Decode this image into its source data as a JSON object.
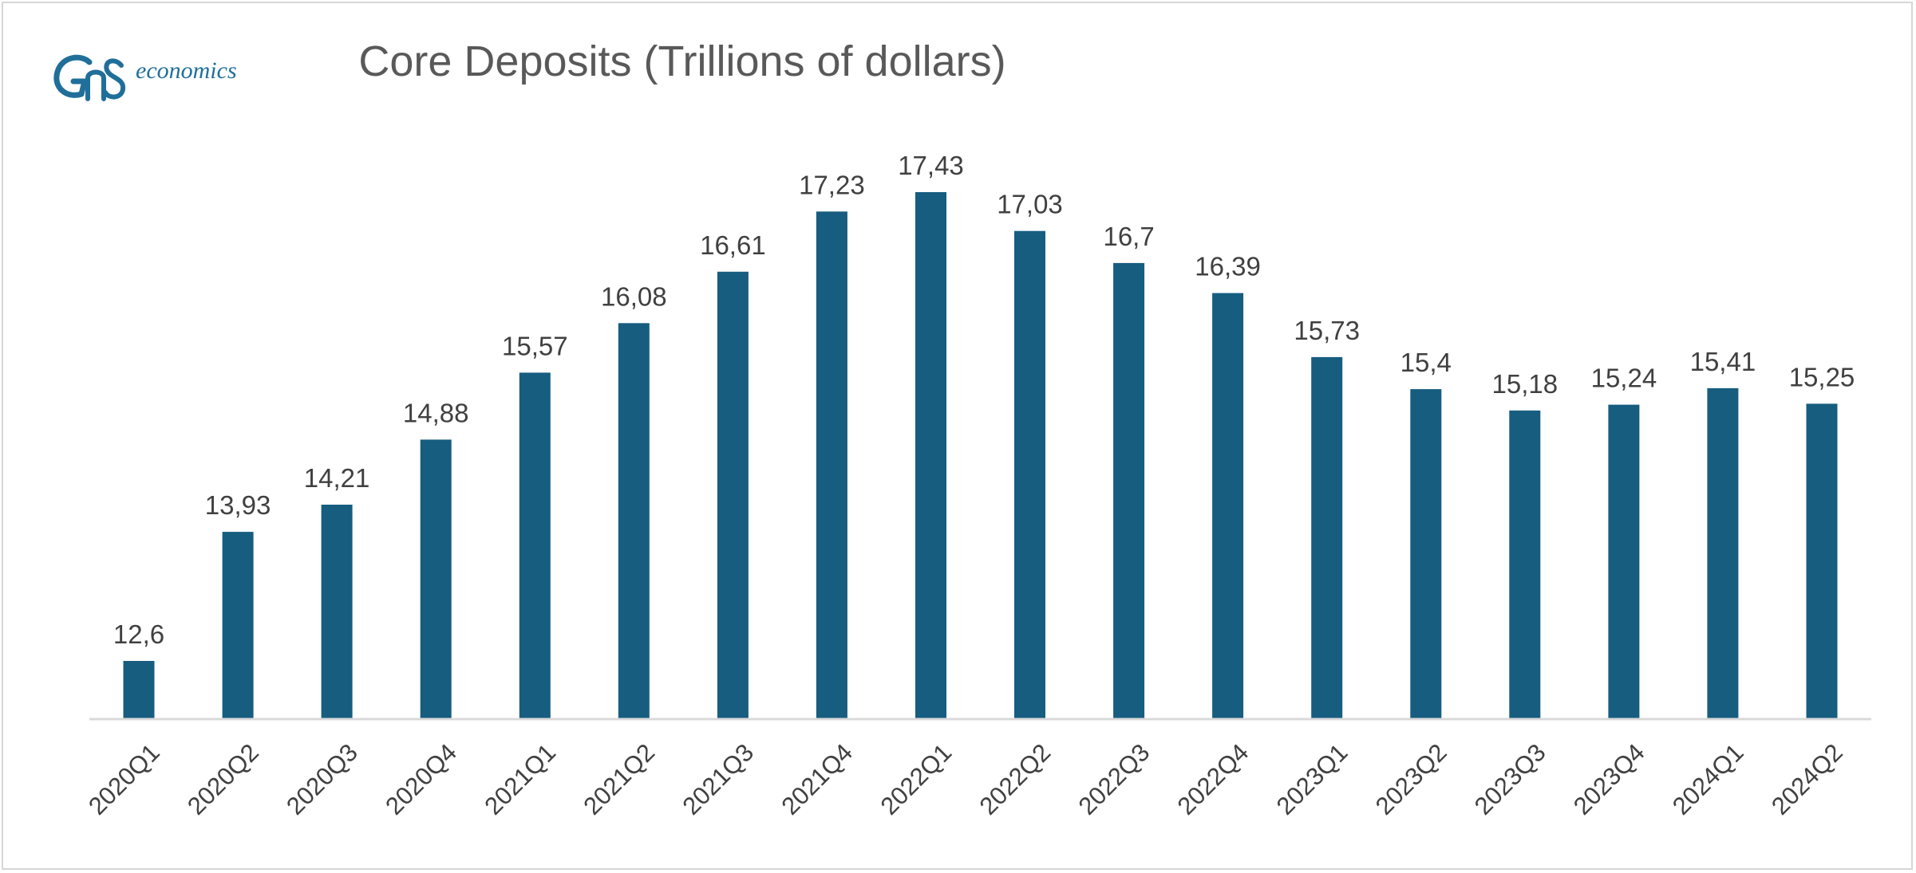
{
  "logo": {
    "brand": "GnS",
    "word": "economics"
  },
  "colors": {
    "bar": "#165d80",
    "text": "#404040",
    "title": "#595959",
    "axis": "#d9d9d9",
    "logo": "#1f6f9a"
  },
  "chart_data": {
    "type": "bar",
    "title": "Core Deposits (Trillions of dollars)",
    "xlabel": "",
    "ylabel": "",
    "categories": [
      "2020Q1",
      "2020Q2",
      "2020Q3",
      "2020Q4",
      "2021Q1",
      "2021Q2",
      "2021Q3",
      "2021Q4",
      "2022Q1",
      "2022Q2",
      "2022Q3",
      "2022Q4",
      "2023Q1",
      "2023Q2",
      "2023Q3",
      "2023Q4",
      "2024Q1",
      "2024Q2"
    ],
    "values": [
      12.6,
      13.93,
      14.21,
      14.88,
      15.57,
      16.08,
      16.61,
      17.23,
      17.43,
      17.03,
      16.7,
      16.39,
      15.73,
      15.4,
      15.18,
      15.24,
      15.41,
      15.25
    ],
    "data_labels": [
      "12,6",
      "13,93",
      "14,21",
      "14,88",
      "15,57",
      "16,08",
      "16,61",
      "17,23",
      "17,43",
      "17,03",
      "16,7",
      "16,39",
      "15,73",
      "15,4",
      "15,18",
      "15,24",
      "15,41",
      "15,25"
    ],
    "ylim": [
      12,
      17.43
    ],
    "grid": false,
    "legend": "none"
  }
}
